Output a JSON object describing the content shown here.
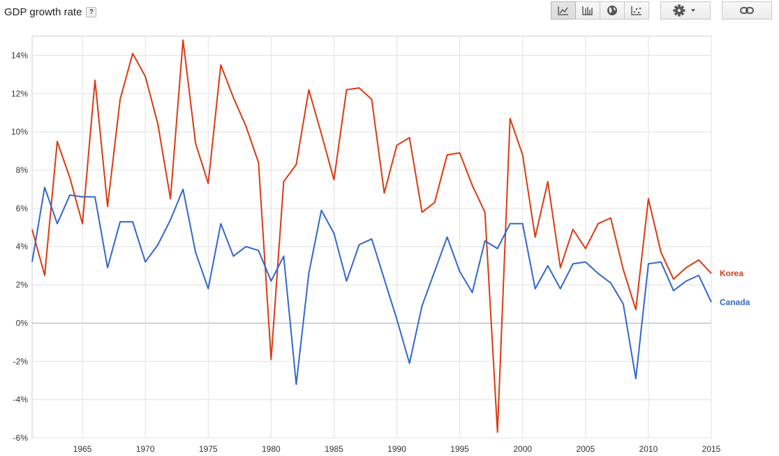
{
  "header": {
    "title": "GDP growth rate",
    "help_label": "?"
  },
  "toolbar": {
    "chart_types": [
      {
        "name": "line-chart-button",
        "icon": "line-chart-icon",
        "active": true
      },
      {
        "name": "bar-chart-button",
        "icon": "bar-chart-icon",
        "active": false
      },
      {
        "name": "map-chart-button",
        "icon": "globe-icon",
        "active": false
      },
      {
        "name": "scatter-chart-button",
        "icon": "scatter-chart-icon",
        "active": false
      }
    ],
    "settings_icon": "gear-icon",
    "link_icon": "link-icon"
  },
  "chart_data": {
    "type": "line",
    "title": "GDP growth rate",
    "xlabel": "",
    "ylabel": "",
    "xlim": [
      1961,
      2015
    ],
    "ylim": [
      -6,
      15
    ],
    "yticks": [
      -6,
      -4,
      -2,
      0,
      2,
      4,
      6,
      8,
      10,
      12,
      14
    ],
    "ytick_format": "{v}%",
    "xticks": [
      1965,
      1970,
      1975,
      1980,
      1985,
      1990,
      1995,
      2000,
      2005,
      2010,
      2015
    ],
    "grid": true,
    "legend": "right-end-labels",
    "x": [
      1961,
      1962,
      1963,
      1964,
      1965,
      1966,
      1967,
      1968,
      1969,
      1970,
      1971,
      1972,
      1973,
      1974,
      1975,
      1976,
      1977,
      1978,
      1979,
      1980,
      1981,
      1982,
      1983,
      1984,
      1985,
      1986,
      1987,
      1988,
      1989,
      1990,
      1991,
      1992,
      1993,
      1994,
      1995,
      1996,
      1997,
      1998,
      1999,
      2000,
      2001,
      2002,
      2003,
      2004,
      2005,
      2006,
      2007,
      2008,
      2009,
      2010,
      2011,
      2012,
      2013,
      2014,
      2015
    ],
    "series": [
      {
        "name": "Korea",
        "color": "#dc3912",
        "values": [
          4.9,
          2.5,
          9.5,
          7.6,
          5.2,
          12.7,
          6.1,
          11.7,
          14.1,
          12.9,
          10.4,
          6.5,
          14.8,
          9.4,
          7.3,
          13.5,
          11.8,
          10.3,
          8.4,
          -1.9,
          7.4,
          8.3,
          12.2,
          9.9,
          7.5,
          12.2,
          12.3,
          11.7,
          6.8,
          9.3,
          9.7,
          5.8,
          6.3,
          8.8,
          8.9,
          7.2,
          5.8,
          -5.7,
          10.7,
          8.8,
          4.5,
          7.4,
          2.9,
          4.9,
          3.9,
          5.2,
          5.5,
          2.8,
          0.7,
          6.5,
          3.7,
          2.3,
          2.9,
          3.3,
          2.6
        ]
      },
      {
        "name": "Canada",
        "color": "#3366cc",
        "values": [
          3.2,
          7.1,
          5.2,
          6.7,
          6.6,
          6.6,
          2.9,
          5.3,
          5.3,
          3.2,
          4.1,
          5.4,
          7.0,
          3.7,
          1.8,
          5.2,
          3.5,
          4.0,
          3.8,
          2.2,
          3.5,
          -3.2,
          2.6,
          5.9,
          4.7,
          2.2,
          4.1,
          4.4,
          2.3,
          0.2,
          -2.1,
          0.9,
          2.7,
          4.5,
          2.7,
          1.6,
          4.3,
          3.9,
          5.2,
          5.2,
          1.8,
          3.0,
          1.8,
          3.1,
          3.2,
          2.6,
          2.1,
          1.0,
          -2.9,
          3.1,
          3.2,
          1.7,
          2.2,
          2.5,
          1.1
        ]
      }
    ]
  }
}
